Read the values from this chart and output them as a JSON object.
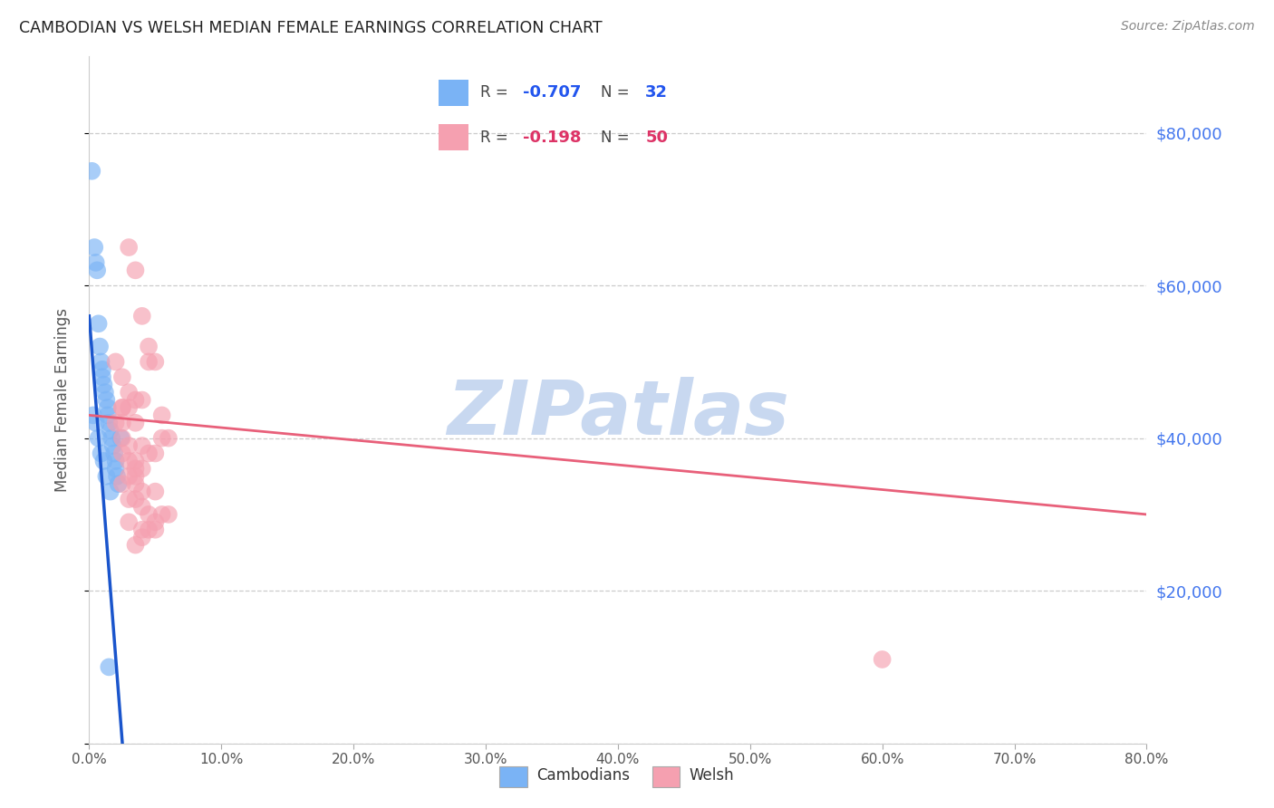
{
  "title": "CAMBODIAN VS WELSH MEDIAN FEMALE EARNINGS CORRELATION CHART",
  "source": "Source: ZipAtlas.com",
  "ylabel": "Median Female Earnings",
  "right_yticks": [
    20000,
    40000,
    60000,
    80000
  ],
  "right_yticklabels": [
    "$20,000",
    "$40,000",
    "$60,000",
    "$80,000"
  ],
  "xlim": [
    0.0,
    0.8
  ],
  "ylim": [
    0,
    90000
  ],
  "legend_r1": "-0.707",
  "legend_n1": "32",
  "legend_r2": "-0.198",
  "legend_n2": "50",
  "cambodian_color": "#7ab3f5",
  "welsh_color": "#f5a0b0",
  "trendline_cambodian_color": "#1a55cc",
  "trendline_welsh_color": "#e8607a",
  "watermark": "ZIPatlas",
  "watermark_color": "#c8d8f0",
  "cambodian_x": [
    0.002,
    0.004,
    0.005,
    0.006,
    0.007,
    0.008,
    0.009,
    0.01,
    0.01,
    0.011,
    0.012,
    0.013,
    0.014,
    0.014,
    0.015,
    0.016,
    0.017,
    0.018,
    0.019,
    0.02,
    0.02,
    0.021,
    0.022,
    0.003,
    0.005,
    0.007,
    0.009,
    0.011,
    0.013,
    0.016,
    0.024,
    0.015
  ],
  "cambodian_y": [
    75000,
    65000,
    63000,
    62000,
    55000,
    52000,
    50000,
    49000,
    48000,
    47000,
    46000,
    45000,
    44000,
    43000,
    42000,
    41000,
    40000,
    39000,
    38000,
    37000,
    36000,
    35000,
    34000,
    43000,
    42000,
    40000,
    38000,
    37000,
    35000,
    33000,
    40000,
    10000
  ],
  "welsh_x": [
    0.025,
    0.03,
    0.035,
    0.04,
    0.045,
    0.05,
    0.02,
    0.025,
    0.03,
    0.035,
    0.04,
    0.03,
    0.025,
    0.035,
    0.045,
    0.055,
    0.025,
    0.03,
    0.04,
    0.05,
    0.025,
    0.03,
    0.035,
    0.04,
    0.055,
    0.03,
    0.035,
    0.025,
    0.04,
    0.05,
    0.03,
    0.035,
    0.04,
    0.055,
    0.045,
    0.03,
    0.04,
    0.05,
    0.02,
    0.035,
    0.025,
    0.06,
    0.045,
    0.035,
    0.06,
    0.05,
    0.045,
    0.04,
    0.035,
    0.6
  ],
  "welsh_y": [
    44000,
    65000,
    62000,
    56000,
    50000,
    50000,
    50000,
    48000,
    46000,
    45000,
    45000,
    44000,
    44000,
    42000,
    52000,
    40000,
    40000,
    39000,
    39000,
    38000,
    38000,
    37000,
    37000,
    36000,
    43000,
    35000,
    34000,
    34000,
    33000,
    33000,
    32000,
    32000,
    31000,
    30000,
    30000,
    29000,
    28000,
    28000,
    42000,
    35000,
    42000,
    40000,
    38000,
    36000,
    30000,
    29000,
    28000,
    27000,
    26000,
    11000
  ],
  "xtick_positions": [
    0.0,
    0.1,
    0.2,
    0.3,
    0.4,
    0.5,
    0.6,
    0.7,
    0.8
  ],
  "xtick_labels": [
    "0.0%",
    "10.0%",
    "20.0%",
    "30.0%",
    "40.0%",
    "50.0%",
    "60.0%",
    "70.0%",
    "80.0%"
  ]
}
